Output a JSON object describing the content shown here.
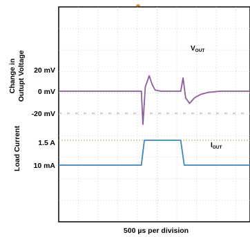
{
  "chart_data": [
    {
      "type": "line",
      "panel": "output-voltage",
      "ylabel_line1": "Change in",
      "ylabel_line2": "Outupt Voltage",
      "tick_labels": [
        "20 mV",
        "0 mV",
        "-20 mV"
      ],
      "series_label_main": "V",
      "series_label_sub": "OUT",
      "color": "#8e5a9b",
      "x_unit": "divisions (500 µs each)",
      "y_unit": "mV",
      "points": [
        [
          0,
          0
        ],
        [
          4.2,
          0
        ],
        [
          4.28,
          -30
        ],
        [
          4.4,
          4
        ],
        [
          4.6,
          14
        ],
        [
          4.75,
          6
        ],
        [
          4.9,
          1
        ],
        [
          5.2,
          0
        ],
        [
          6.2,
          0
        ],
        [
          6.32,
          12
        ],
        [
          6.45,
          -6
        ],
        [
          6.65,
          -11
        ],
        [
          6.9,
          -6
        ],
        [
          7.2,
          -3
        ],
        [
          7.6,
          -1
        ],
        [
          8.2,
          0
        ],
        [
          10,
          0
        ]
      ]
    },
    {
      "type": "line",
      "panel": "load-current",
      "ylabel": "Load Current",
      "tick_labels": [
        "1.5 A",
        "10 mA"
      ],
      "series_label_main": "I",
      "series_label_sub": "OUT",
      "color": "#3b86b8",
      "y_unit": "A",
      "points": [
        [
          0,
          0.01
        ],
        [
          4.2,
          0.01
        ],
        [
          4.35,
          1.5
        ],
        [
          6.2,
          1.5
        ],
        [
          6.38,
          0.01
        ],
        [
          10,
          0.01
        ]
      ]
    }
  ],
  "xlabel": "500 µs per division",
  "colors": {
    "grid": "#bdbdbd",
    "frame": "#000000",
    "reference_line": "#c8b077",
    "trigger_marker": "#e0902a"
  }
}
